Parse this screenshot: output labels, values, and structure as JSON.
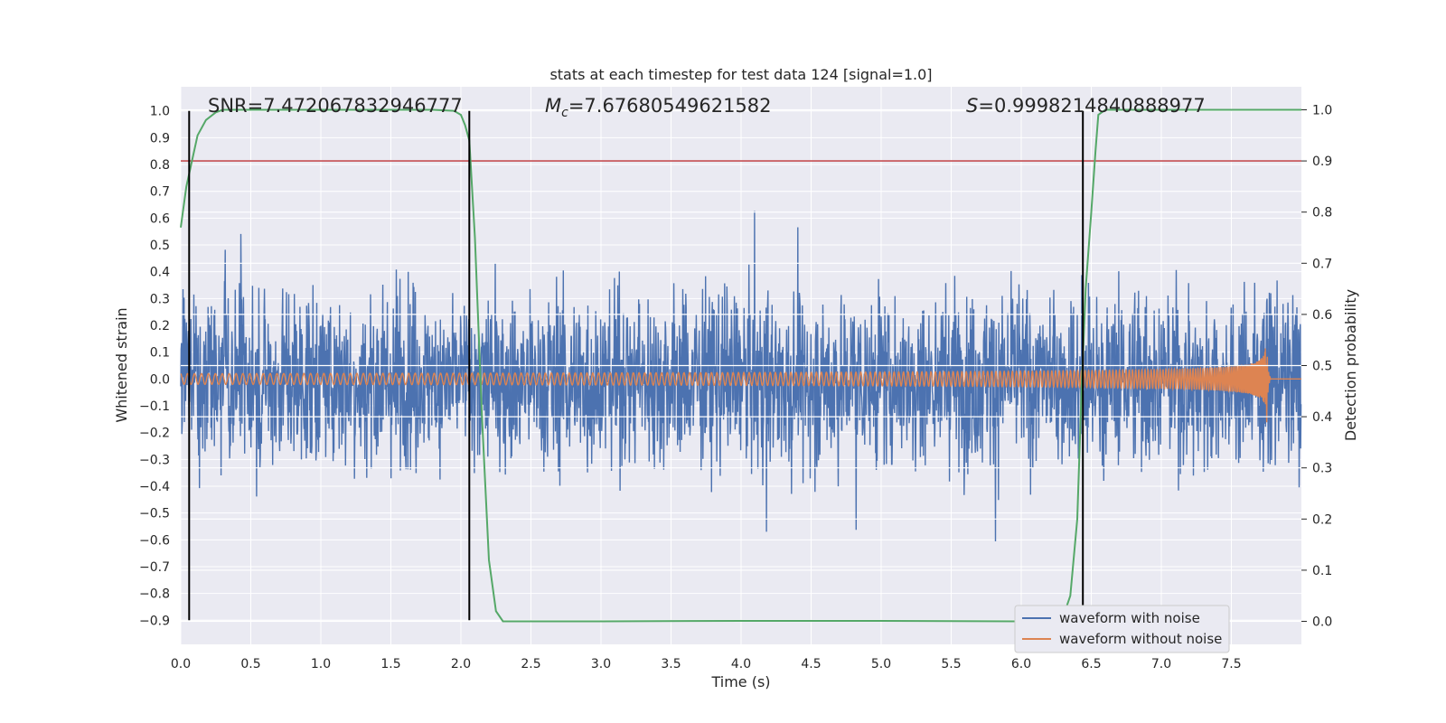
{
  "chart_data": {
    "type": "line",
    "title": "stats at each timestep for test data 124 [signal=1.0]",
    "xlabel": "Time (s)",
    "ylabel_left": "Whitened strain",
    "ylabel_right": "Detection probability",
    "xlim": [
      0.0,
      8.0
    ],
    "ylim_left": [
      -0.99,
      1.09
    ],
    "ylim_right": [
      -0.045,
      1.045
    ],
    "x_ticks": [
      "0.0",
      "0.5",
      "1.0",
      "1.5",
      "2.0",
      "2.5",
      "3.0",
      "3.5",
      "4.0",
      "4.5",
      "5.0",
      "5.5",
      "6.0",
      "6.5",
      "7.0",
      "7.5"
    ],
    "y_ticks_left": [
      "1.0",
      "0.9",
      "0.8",
      "0.7",
      "0.6",
      "0.5",
      "0.4",
      "0.3",
      "0.2",
      "0.1",
      "0.0",
      "−0.1",
      "−0.2",
      "−0.3",
      "−0.4",
      "−0.5",
      "−0.6",
      "−0.7",
      "−0.8",
      "−0.9"
    ],
    "y_ticks_right": [
      "1.0",
      "0.9",
      "0.8",
      "0.7",
      "0.6",
      "0.5",
      "0.4",
      "0.3",
      "0.2",
      "0.1",
      "0.0"
    ],
    "grid": true,
    "legend_placement": "lower-right",
    "annotations": {
      "snr": "SNR=7.472067832946777",
      "mc_symbol": "M",
      "mc_sub": "c",
      "mc_value": "=7.67680549621582",
      "s_symbol": "S",
      "s_value": "=0.9998214840888977"
    },
    "threshold": {
      "value": 0.9,
      "axis": "right"
    },
    "vlines_x": [
      0.06,
      2.06,
      6.44
    ],
    "series": [
      {
        "name": "waveform with noise",
        "axis": "left",
        "kind": "noise",
        "envelope": 0.45,
        "min": -0.9,
        "max": 0.9
      },
      {
        "name": "waveform without noise",
        "axis": "left",
        "kind": "chirp",
        "merger_time": 7.75,
        "peak_amplitude": 0.21
      },
      {
        "name": "detection-probability",
        "axis": "right",
        "kind": "probability",
        "x": [
          0.0,
          0.04,
          0.08,
          0.12,
          0.18,
          0.25,
          0.3,
          0.4,
          1.0,
          1.8,
          1.95,
          2.0,
          2.03,
          2.06,
          2.1,
          2.15,
          2.2,
          2.25,
          2.3,
          2.4,
          3.0,
          4.0,
          5.0,
          6.0,
          6.3,
          6.35,
          6.4,
          6.43,
          6.46,
          6.5,
          6.53,
          6.55,
          6.6,
          6.65,
          7.0,
          7.5,
          8.0
        ],
        "y": [
          0.77,
          0.85,
          0.9,
          0.95,
          0.98,
          0.995,
          1.0,
          1.0,
          1.0,
          1.0,
          0.998,
          0.99,
          0.97,
          0.94,
          0.75,
          0.4,
          0.12,
          0.02,
          0.0,
          0.0,
          0.0,
          0.001,
          0.001,
          0.0,
          0.01,
          0.05,
          0.2,
          0.45,
          0.65,
          0.8,
          0.92,
          0.99,
          1.0,
          1.0,
          1.0,
          1.0,
          1.0
        ]
      }
    ],
    "colors": {
      "noise": "#4c72b0",
      "clean": "#dd8452",
      "probability": "#55a868",
      "threshold": "#c44e52",
      "vline": "#000000",
      "plot_bg": "#eaeaf2",
      "grid": "#ffffff",
      "text": "#262626"
    }
  }
}
